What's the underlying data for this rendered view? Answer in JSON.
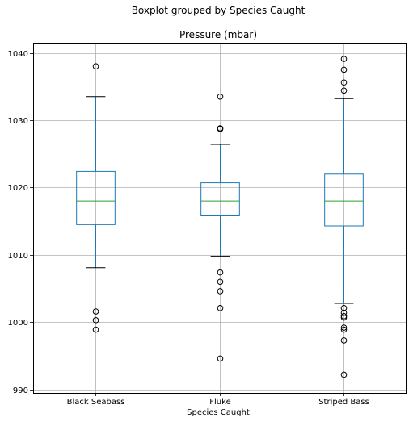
{
  "chart_data": {
    "type": "boxplot",
    "suptitle": "Boxplot grouped by Species Caught",
    "title": "Pressure (mbar)",
    "xlabel": "Species Caught",
    "ylabel": "",
    "ylim": [
      989.5,
      1041.5
    ],
    "yticks": [
      990,
      1000,
      1010,
      1020,
      1030,
      1040
    ],
    "grid": true,
    "colors": {
      "box": "#1f77b4",
      "median": "#2ca02c",
      "whisker": "#1f77b4",
      "cap": "#000000",
      "flier": "#000000",
      "grid": "#b0b0b0"
    },
    "categories": [
      "Black Seabass",
      "Fluke",
      "Striped Bass"
    ],
    "boxes": [
      {
        "name": "Black Seabass",
        "whislo": 1008.1,
        "q1": 1014.5,
        "med": 1018.0,
        "q3": 1022.4,
        "whishi": 1033.5,
        "fliers": [
          1038.0,
          1001.6,
          1000.3,
          998.9
        ]
      },
      {
        "name": "Fluke",
        "whislo": 1009.8,
        "q1": 1015.8,
        "med": 1018.0,
        "q3": 1020.7,
        "whishi": 1026.4,
        "fliers": [
          1033.5,
          1028.8,
          1028.7,
          1007.4,
          1006.0,
          1004.6,
          1002.1,
          994.6
        ]
      },
      {
        "name": "Striped Bass",
        "whislo": 1002.8,
        "q1": 1014.3,
        "med": 1018.0,
        "q3": 1022.0,
        "whishi": 1033.2,
        "fliers": [
          1039.1,
          1037.5,
          1035.6,
          1034.4,
          1002.1,
          1001.4,
          1000.7,
          1000.9,
          999.2,
          998.9,
          997.3,
          992.2
        ]
      }
    ]
  }
}
